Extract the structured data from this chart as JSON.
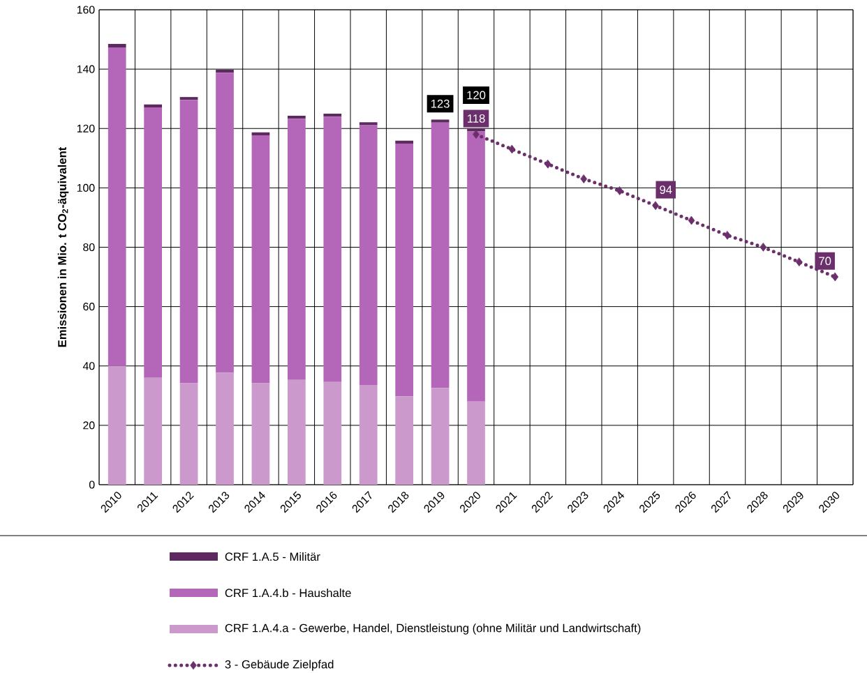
{
  "chart_data": {
    "type": "bar",
    "stacked": true,
    "ylabel": "Emissionen in Mio. t CO$_{2}$-äquivalent",
    "categories": [
      "2010",
      "2011",
      "2012",
      "2013",
      "2014",
      "2015",
      "2016",
      "2017",
      "2018",
      "2019",
      "2020",
      "2021",
      "2022",
      "2023",
      "2024",
      "2025",
      "2026",
      "2027",
      "2028",
      "2029",
      "2030"
    ],
    "series": [
      {
        "name": "CRF 1.A.4.a - Gewerbe, Handel, Dienstleistung (ohne Militär und Landwirtschaft)",
        "color": "#cc99cc",
        "values": [
          40.0,
          36.0,
          34.2,
          37.7,
          34.2,
          35.3,
          34.6,
          33.6,
          29.8,
          32.6,
          28.0,
          null,
          null,
          null,
          null,
          null,
          null,
          null,
          null,
          null,
          null
        ]
      },
      {
        "name": "CRF 1.A.4.b - Haushalte",
        "color": "#b466b8",
        "values": [
          107.3,
          91.1,
          95.4,
          101.1,
          83.5,
          88.0,
          89.4,
          87.5,
          85.1,
          89.4,
          91.0,
          null,
          null,
          null,
          null,
          null,
          null,
          null,
          null,
          null,
          null
        ]
      },
      {
        "name": "CRF 1.A.5 - Militär",
        "color": "#5c2a5e",
        "values": [
          1.2,
          1.0,
          1.0,
          1.0,
          1.0,
          1.0,
          1.0,
          1.0,
          1.0,
          1.0,
          1.0,
          null,
          null,
          null,
          null,
          null,
          null,
          null,
          null,
          null,
          null
        ]
      },
      {
        "name": "3 - Gebäude Zielpfad",
        "type": "line",
        "color": "#6b2f6b",
        "marker": "diamond",
        "line_style": "dotted",
        "values": [
          null,
          null,
          null,
          null,
          null,
          null,
          null,
          null,
          null,
          null,
          118,
          113,
          108,
          103,
          99,
          94,
          89,
          84,
          80,
          75,
          70
        ],
        "value_labels": [
          null,
          null,
          null,
          null,
          null,
          null,
          null,
          null,
          null,
          null,
          "118",
          null,
          null,
          null,
          null,
          "94",
          null,
          null,
          null,
          null,
          "70"
        ]
      }
    ],
    "totals": [
      null,
      null,
      null,
      null,
      null,
      null,
      null,
      null,
      null,
      "123",
      "120",
      null,
      null,
      null,
      null,
      null,
      null,
      null,
      null,
      null,
      null
    ],
    "ylim": [
      0,
      160
    ],
    "yticks": [
      0,
      20,
      40,
      60,
      80,
      100,
      120,
      140,
      160
    ],
    "grid": true,
    "legend": "bottom"
  }
}
